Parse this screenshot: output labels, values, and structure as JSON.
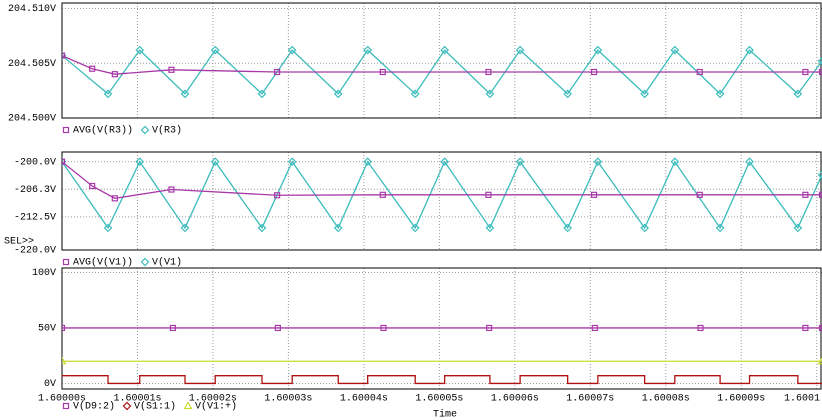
{
  "chart_data": [
    {
      "type": "line",
      "legend": "bottom",
      "grid": true,
      "xlim": [
        1.6,
        1.6001007
      ],
      "xticks": [
        1.6,
        1.60001,
        1.60002,
        1.60003,
        1.60004,
        1.60005,
        1.60006,
        1.60007,
        1.60008,
        1.60009,
        1.6001
      ],
      "ylim": [
        204.5,
        204.5105
      ],
      "yticks": [
        {
          "value": 204.5,
          "label": "204.500V"
        },
        {
          "value": 204.505,
          "label": "204.505V"
        },
        {
          "value": 204.51,
          "label": "204.510V"
        }
      ],
      "series": [
        {
          "name": "AVG(V(R3))",
          "color": "#a838a8",
          "marker": "square",
          "x": [
            1.6,
            1.600004,
            1.600007,
            1.6000145,
            1.6000285,
            1.6000425,
            1.6000565,
            1.6000705,
            1.6000845,
            1.6000985,
            1.6001007
          ],
          "values": [
            204.5057,
            204.5045,
            204.504,
            204.5044,
            204.5042,
            204.5042,
            204.5042,
            204.5042,
            204.5042,
            204.5042,
            204.5042
          ]
        },
        {
          "name": "V(R3)",
          "color": "#3cbcbc",
          "marker": "diamond",
          "x": [
            1.6,
            1.6000061,
            1.6000103,
            1.6000163,
            1.6000203,
            1.6000265,
            1.6000305,
            1.6000366,
            1.6000405,
            1.6000468,
            1.6000507,
            1.6000567,
            1.6000607,
            1.600067,
            1.600071,
            1.6000772,
            1.6000812,
            1.6000872,
            1.6000911,
            1.6000975,
            1.6001007
          ],
          "values": [
            204.5057,
            204.5022,
            204.5062,
            204.5022,
            204.5062,
            204.5022,
            204.5062,
            204.5022,
            204.5062,
            204.5022,
            204.5062,
            204.5022,
            204.5062,
            204.5022,
            204.5062,
            204.5022,
            204.5062,
            204.5022,
            204.5062,
            204.5022,
            204.5052
          ]
        }
      ]
    },
    {
      "type": "line",
      "legend": "bottom",
      "grid": true,
      "selector": "SEL>>",
      "xlim": [
        1.6,
        1.6001007
      ],
      "xticks": [
        1.6,
        1.60001,
        1.60002,
        1.60003,
        1.60004,
        1.60005,
        1.60006,
        1.60007,
        1.60008,
        1.60009,
        1.6001
      ],
      "ylim": [
        -220,
        -197.8
      ],
      "yticks": [
        {
          "value": -200,
          "label": "-200.0V"
        },
        {
          "value": -206.25,
          "label": "-206.3V"
        },
        {
          "value": -212.5,
          "label": "-212.5V"
        },
        {
          "value": -220,
          "label": "-220.0V"
        }
      ],
      "series": [
        {
          "name": "AVG(V(V1))",
          "color": "#a838a8",
          "marker": "square",
          "x": [
            1.6,
            1.600004,
            1.600007,
            1.6000145,
            1.6000285,
            1.6000425,
            1.6000565,
            1.6000705,
            1.6000845,
            1.6000985,
            1.6001007
          ],
          "values": [
            -200,
            -205.5,
            -208.3,
            -206.3,
            -207.6,
            -207.5,
            -207.5,
            -207.5,
            -207.5,
            -207.5,
            -207.5
          ]
        },
        {
          "name": "V(V1)",
          "color": "#3cbcbc",
          "marker": "diamond",
          "x": [
            1.6,
            1.6000061,
            1.6000103,
            1.6000163,
            1.6000203,
            1.6000265,
            1.6000305,
            1.6000366,
            1.6000405,
            1.6000468,
            1.6000507,
            1.6000567,
            1.6000607,
            1.600067,
            1.600071,
            1.6000772,
            1.6000812,
            1.6000872,
            1.6000911,
            1.6000975,
            1.6001007
          ],
          "values": [
            -200,
            -215,
            -200,
            -215,
            -200,
            -215,
            -200,
            -215,
            -200,
            -215,
            -200,
            -215,
            -200,
            -215,
            -200,
            -215,
            -200,
            -215,
            -200,
            -215,
            -203
          ]
        }
      ]
    },
    {
      "type": "line",
      "legend": "bottom",
      "grid": true,
      "xlabel": "Time",
      "xlim": [
        1.6,
        1.6001007
      ],
      "xticks": [
        {
          "value": 1.6,
          "label": "1.60000s"
        },
        {
          "value": 1.60001,
          "label": "1.60001s"
        },
        {
          "value": 1.60002,
          "label": "1.60002s"
        },
        {
          "value": 1.60003,
          "label": "1.60003s"
        },
        {
          "value": 1.60004,
          "label": "1.60004s"
        },
        {
          "value": 1.60005,
          "label": "1.60005s"
        },
        {
          "value": 1.60006,
          "label": "1.60006s"
        },
        {
          "value": 1.60007,
          "label": "1.60007s"
        },
        {
          "value": 1.60008,
          "label": "1.60008s"
        },
        {
          "value": 1.60009,
          "label": "1.60009s"
        },
        {
          "value": 1.6001,
          "label": "1.6001"
        }
      ],
      "ylim": [
        -5,
        104
      ],
      "yticks": [
        {
          "value": 0,
          "label": "0V"
        },
        {
          "value": 50,
          "label": "50V"
        },
        {
          "value": 100,
          "label": "100V"
        }
      ],
      "series": [
        {
          "name": "V(D9:2)",
          "color": "#a838a8",
          "marker": "square",
          "x": [
            1.6,
            1.6000147,
            1.6000286,
            1.6000426,
            1.6000566,
            1.6000706,
            1.6000846,
            1.6000985,
            1.6001007
          ],
          "values": [
            50,
            50,
            50,
            50,
            50,
            50,
            50,
            50,
            50
          ]
        },
        {
          "name": "V(S1:1)",
          "color": "#b01010",
          "marker": "diamond",
          "x": [
            1.6,
            1.6000061,
            1.6000061,
            1.6000103,
            1.6000103,
            1.6000163,
            1.6000163,
            1.6000203,
            1.6000203,
            1.6000265,
            1.6000265,
            1.6000305,
            1.6000305,
            1.6000366,
            1.6000366,
            1.6000405,
            1.6000405,
            1.6000468,
            1.6000468,
            1.6000507,
            1.6000507,
            1.6000567,
            1.6000567,
            1.6000607,
            1.6000607,
            1.600067,
            1.600067,
            1.600071,
            1.600071,
            1.6000772,
            1.6000772,
            1.6000812,
            1.6000812,
            1.6000872,
            1.6000872,
            1.6000911,
            1.6000911,
            1.6000975,
            1.6000975,
            1.6001007
          ],
          "values": [
            7,
            7,
            0,
            0,
            7,
            7,
            0,
            0,
            7,
            7,
            0,
            0,
            7,
            7,
            0,
            0,
            7,
            7,
            0,
            0,
            7,
            7,
            0,
            0,
            7,
            7,
            0,
            0,
            7,
            7,
            0,
            0,
            7,
            7,
            0,
            0,
            7,
            7,
            0,
            0
          ]
        },
        {
          "name": "V(V1:+)",
          "color": "#c8dc30",
          "marker": "triangle",
          "x": [
            1.6,
            1.6001007
          ],
          "values": [
            20,
            20
          ]
        }
      ]
    }
  ]
}
